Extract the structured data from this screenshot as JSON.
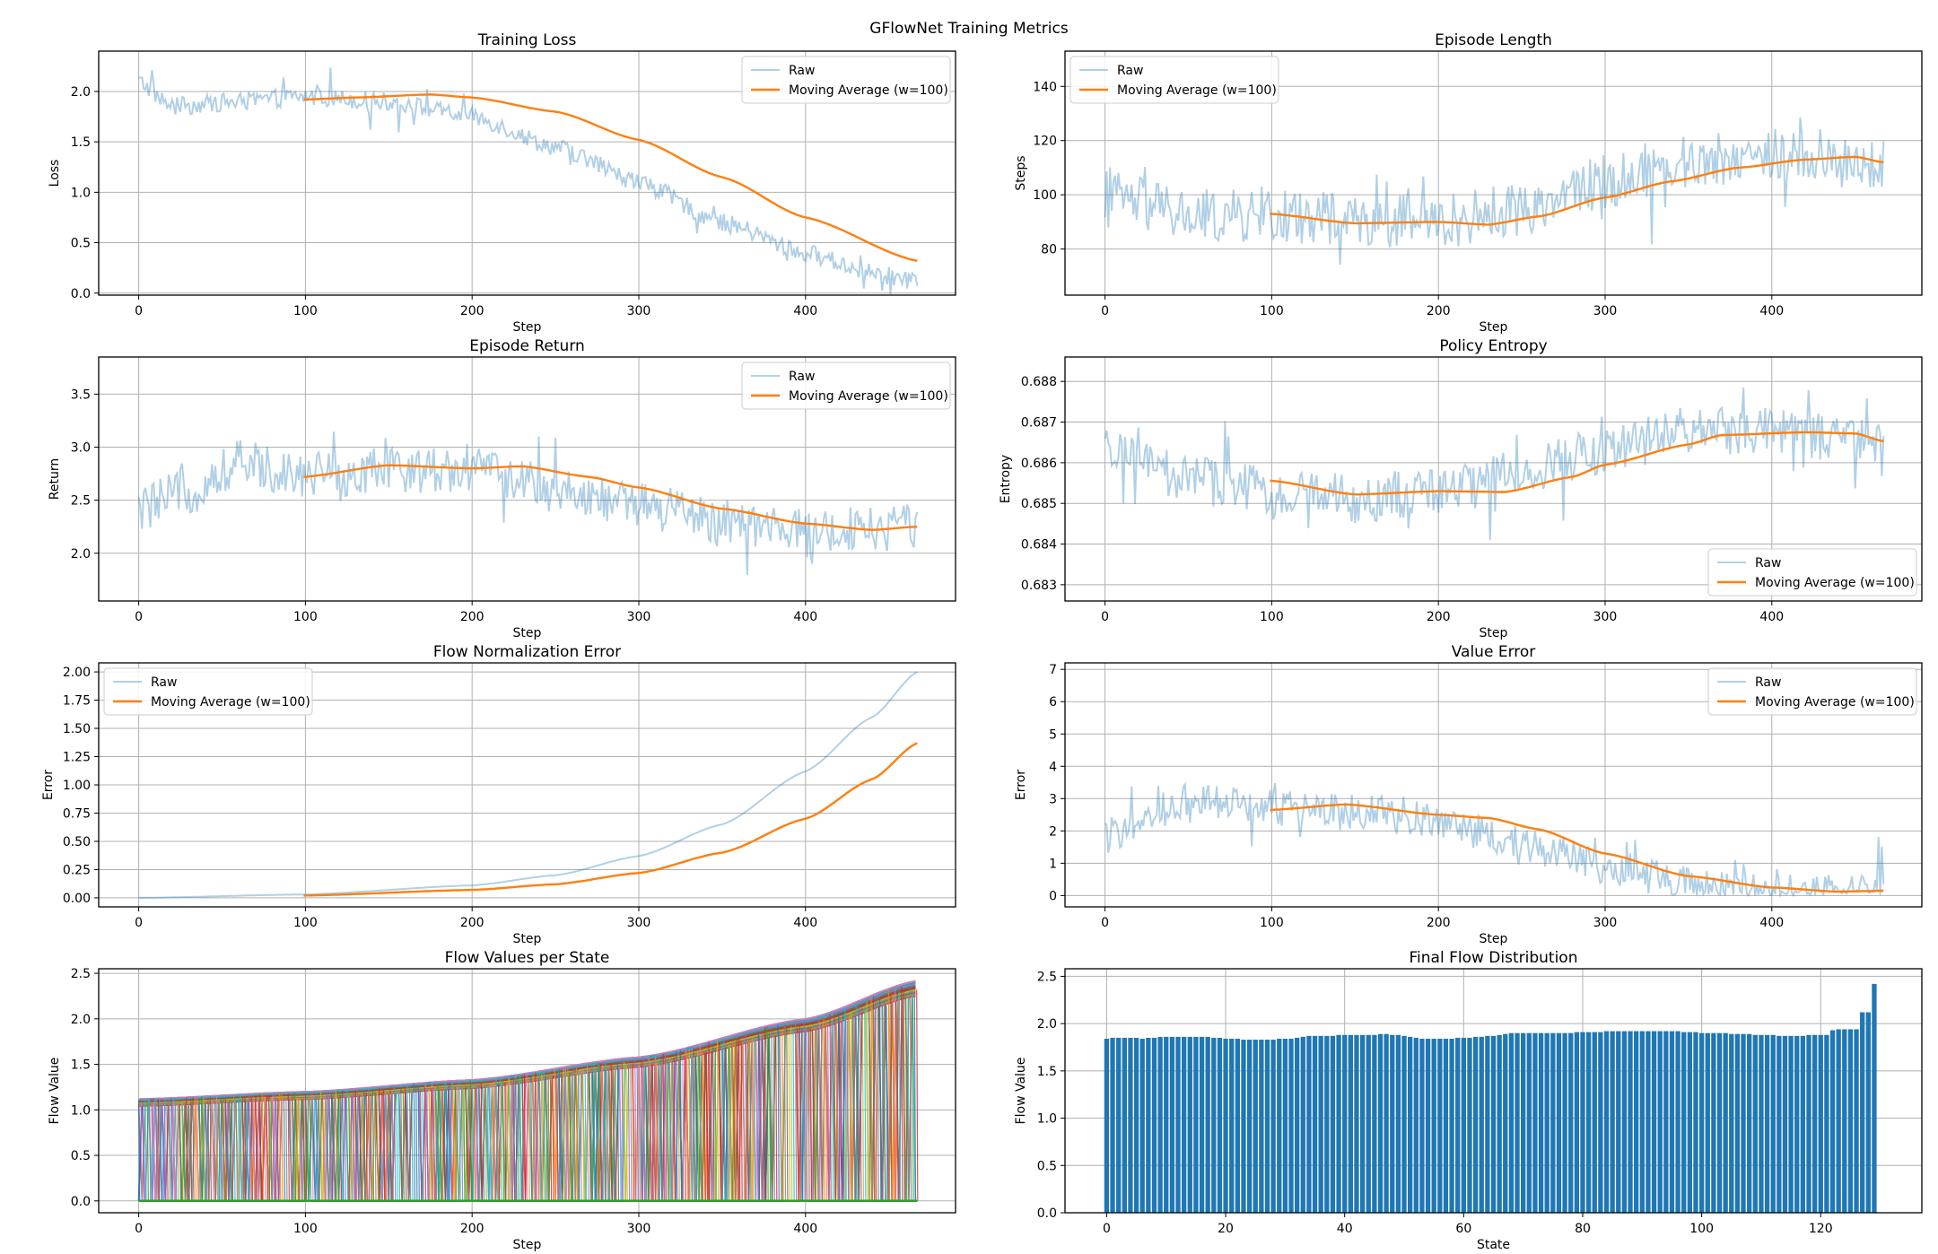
{
  "figure": {
    "suptitle": "GFlowNet Training Metrics"
  },
  "colors": {
    "raw": "#1f77b4",
    "ma": "#ff7f0e",
    "bar": "#1f77b4",
    "grid": "#b0b0b0"
  },
  "chart_data": [
    {
      "id": "loss",
      "type": "line",
      "title": "Training Loss",
      "xlabel": "Step",
      "ylabel": "Loss",
      "xlim": [
        -24,
        490
      ],
      "ylim": [
        -0.02,
        2.4
      ],
      "xticks": [
        0,
        100,
        200,
        300,
        400
      ],
      "yticks": [
        0.0,
        0.5,
        1.0,
        1.5,
        2.0
      ],
      "ytick_labels": [
        "0.0",
        "0.5",
        "1.0",
        "1.5",
        "2.0"
      ],
      "legend": {
        "loc": "top-right",
        "entries": [
          "Raw",
          "Moving Average (w=100)"
        ]
      },
      "raw": {
        "n": 468,
        "knots": [
          [
            0,
            2.1
          ],
          [
            20,
            1.85
          ],
          [
            60,
            1.9
          ],
          [
            100,
            1.95
          ],
          [
            150,
            1.9
          ],
          [
            200,
            1.75
          ],
          [
            250,
            1.45
          ],
          [
            300,
            1.1
          ],
          [
            350,
            0.7
          ],
          [
            400,
            0.4
          ],
          [
            440,
            0.2
          ],
          [
            467,
            0.12
          ]
        ],
        "noise": 0.09,
        "spikes": 0.25
      },
      "ma": {
        "x0": 99,
        "x1": 467,
        "knots": [
          [
            99,
            1.92
          ],
          [
            130,
            1.94
          ],
          [
            175,
            1.97
          ],
          [
            200,
            1.94
          ],
          [
            250,
            1.8
          ],
          [
            300,
            1.52
          ],
          [
            350,
            1.15
          ],
          [
            400,
            0.75
          ],
          [
            467,
            0.32
          ]
        ]
      }
    },
    {
      "id": "length",
      "type": "line",
      "title": "Episode Length",
      "xlabel": "Step",
      "ylabel": "Steps",
      "xlim": [
        -24,
        490
      ],
      "ylim": [
        63,
        153
      ],
      "xticks": [
        0,
        100,
        200,
        300,
        400
      ],
      "yticks": [
        80,
        100,
        120,
        140
      ],
      "ytick_labels": [
        "80",
        "100",
        "120",
        "140"
      ],
      "legend": {
        "loc": "top-left",
        "entries": [
          "Raw",
          "Moving Average (w=100)"
        ]
      },
      "raw": {
        "n": 468,
        "knots": [
          [
            0,
            100
          ],
          [
            50,
            92
          ],
          [
            100,
            92
          ],
          [
            200,
            90
          ],
          [
            250,
            95
          ],
          [
            300,
            105
          ],
          [
            350,
            112
          ],
          [
            400,
            115
          ],
          [
            467,
            110
          ]
        ],
        "noise": 10,
        "spikes": 20
      },
      "ma": {
        "x0": 99,
        "x1": 467,
        "knots": [
          [
            99,
            93
          ],
          [
            150,
            89.5
          ],
          [
            200,
            90
          ],
          [
            230,
            89
          ],
          [
            260,
            92
          ],
          [
            300,
            99
          ],
          [
            340,
            105
          ],
          [
            380,
            110
          ],
          [
            420,
            113
          ],
          [
            450,
            114
          ],
          [
            467,
            112
          ]
        ]
      }
    },
    {
      "id": "return",
      "type": "line",
      "title": "Episode Return",
      "xlabel": "Step",
      "ylabel": "Return",
      "xlim": [
        -24,
        490
      ],
      "ylim": [
        1.55,
        3.85
      ],
      "xticks": [
        0,
        100,
        200,
        300,
        400
      ],
      "yticks": [
        2.0,
        2.5,
        3.0,
        3.5
      ],
      "ytick_labels": [
        "2.0",
        "2.5",
        "3.0",
        "3.5"
      ],
      "legend": {
        "loc": "top-right",
        "entries": [
          "Raw",
          "Moving Average (w=100)"
        ]
      },
      "raw": {
        "n": 468,
        "knots": [
          [
            0,
            2.4
          ],
          [
            30,
            2.6
          ],
          [
            60,
            2.85
          ],
          [
            100,
            2.75
          ],
          [
            200,
            2.8
          ],
          [
            250,
            2.6
          ],
          [
            300,
            2.45
          ],
          [
            350,
            2.3
          ],
          [
            400,
            2.2
          ],
          [
            467,
            2.25
          ]
        ],
        "noise": 0.22,
        "spikes": 0.45
      },
      "ma": {
        "x0": 99,
        "x1": 467,
        "knots": [
          [
            99,
            2.72
          ],
          [
            150,
            2.83
          ],
          [
            200,
            2.8
          ],
          [
            230,
            2.82
          ],
          [
            270,
            2.72
          ],
          [
            300,
            2.62
          ],
          [
            350,
            2.42
          ],
          [
            400,
            2.28
          ],
          [
            440,
            2.22
          ],
          [
            467,
            2.25
          ]
        ]
      }
    },
    {
      "id": "entropy",
      "type": "line",
      "title": "Policy Entropy",
      "xlabel": "Step",
      "ylabel": "Entropy",
      "xlim": [
        -24,
        490
      ],
      "ylim": [
        0.6826,
        0.6886
      ],
      "xticks": [
        0,
        100,
        200,
        300,
        400
      ],
      "yticks": [
        0.683,
        0.684,
        0.685,
        0.686,
        0.687,
        0.688
      ],
      "ytick_labels": [
        "0.683",
        "0.684",
        "0.685",
        "0.686",
        "0.687",
        "0.688"
      ],
      "legend": {
        "loc": "bottom-right",
        "entries": [
          "Raw",
          "Moving Average (w=100)"
        ]
      },
      "raw": {
        "n": 468,
        "knots": [
          [
            0,
            0.6862
          ],
          [
            50,
            0.6856
          ],
          [
            100,
            0.6853
          ],
          [
            150,
            0.6851
          ],
          [
            200,
            0.6853
          ],
          [
            250,
            0.6858
          ],
          [
            300,
            0.6863
          ],
          [
            350,
            0.6868
          ],
          [
            400,
            0.6868
          ],
          [
            467,
            0.6864
          ]
        ],
        "noise": 0.0006,
        "spikes": 0.0013
      },
      "ma": {
        "x0": 99,
        "x1": 467,
        "knots": [
          [
            99,
            0.68556
          ],
          [
            150,
            0.68522
          ],
          [
            200,
            0.6853
          ],
          [
            240,
            0.68528
          ],
          [
            280,
            0.68565
          ],
          [
            300,
            0.68595
          ],
          [
            350,
            0.68645
          ],
          [
            370,
            0.68668
          ],
          [
            420,
            0.68675
          ],
          [
            450,
            0.68672
          ],
          [
            467,
            0.68653
          ]
        ]
      }
    },
    {
      "id": "flownorm",
      "type": "line",
      "title": "Flow Normalization Error",
      "xlabel": "Step",
      "ylabel": "Error",
      "xlim": [
        -24,
        490
      ],
      "ylim": [
        -0.08,
        2.08
      ],
      "xticks": [
        0,
        100,
        200,
        300,
        400
      ],
      "yticks": [
        0.0,
        0.25,
        0.5,
        0.75,
        1.0,
        1.25,
        1.5,
        1.75,
        2.0
      ],
      "ytick_labels": [
        "0.00",
        "0.25",
        "0.50",
        "0.75",
        "1.00",
        "1.25",
        "1.50",
        "1.75",
        "2.00"
      ],
      "legend": {
        "loc": "top-left",
        "entries": [
          "Raw",
          "Moving Average (w=100)"
        ]
      },
      "raw": {
        "n": 468,
        "knots": [
          [
            0,
            0.0
          ],
          [
            100,
            0.03
          ],
          [
            200,
            0.11
          ],
          [
            250,
            0.2
          ],
          [
            300,
            0.37
          ],
          [
            350,
            0.65
          ],
          [
            400,
            1.12
          ],
          [
            440,
            1.6
          ],
          [
            467,
            2.0
          ]
        ],
        "noise": 0,
        "spikes": 0
      },
      "ma": {
        "x0": 99,
        "x1": 467,
        "knots": [
          [
            99,
            0.02
          ],
          [
            200,
            0.07
          ],
          [
            250,
            0.12
          ],
          [
            300,
            0.22
          ],
          [
            350,
            0.4
          ],
          [
            400,
            0.7
          ],
          [
            440,
            1.05
          ],
          [
            467,
            1.37
          ]
        ]
      }
    },
    {
      "id": "valueerr",
      "type": "line",
      "title": "Value Error",
      "xlabel": "Step",
      "ylabel": "Error",
      "xlim": [
        -24,
        490
      ],
      "ylim": [
        -0.35,
        7.2
      ],
      "xticks": [
        0,
        100,
        200,
        300,
        400
      ],
      "yticks": [
        0,
        1,
        2,
        3,
        4,
        5,
        6,
        7
      ],
      "ytick_labels": [
        "0",
        "1",
        "2",
        "3",
        "4",
        "5",
        "6",
        "7"
      ],
      "legend": {
        "loc": "top-right",
        "entries": [
          "Raw",
          "Moving Average (w=100)"
        ]
      },
      "raw": {
        "n": 468,
        "knots": [
          [
            0,
            1.8
          ],
          [
            20,
            2.3
          ],
          [
            50,
            3.0
          ],
          [
            100,
            2.7
          ],
          [
            150,
            2.6
          ],
          [
            200,
            2.3
          ],
          [
            250,
            1.6
          ],
          [
            300,
            0.9
          ],
          [
            350,
            0.35
          ],
          [
            400,
            0.12
          ],
          [
            467,
            0.06
          ]
        ],
        "noise": 0.55,
        "spikes": 1.3
      },
      "ma": {
        "x0": 99,
        "x1": 467,
        "knots": [
          [
            99,
            2.65
          ],
          [
            145,
            2.82
          ],
          [
            200,
            2.5
          ],
          [
            230,
            2.4
          ],
          [
            260,
            2.05
          ],
          [
            300,
            1.3
          ],
          [
            350,
            0.6
          ],
          [
            400,
            0.25
          ],
          [
            440,
            0.12
          ],
          [
            467,
            0.15
          ]
        ]
      }
    },
    {
      "id": "flowvalues",
      "type": "line",
      "title": "Flow Values per State",
      "xlabel": "Step",
      "ylabel": "Flow Value",
      "xlim": [
        -24,
        490
      ],
      "ylim": [
        -0.13,
        2.55
      ],
      "xticks": [
        0,
        100,
        200,
        300,
        400
      ],
      "yticks": [
        0.0,
        0.5,
        1.0,
        1.5,
        2.0,
        2.5
      ],
      "ytick_labels": [
        "0.0",
        "0.5",
        "1.0",
        "1.5",
        "2.0",
        "2.5"
      ],
      "n_series": 130,
      "envelope": [
        [
          0,
          1.12
        ],
        [
          100,
          1.2
        ],
        [
          200,
          1.33
        ],
        [
          300,
          1.58
        ],
        [
          400,
          2.0
        ],
        [
          467,
          2.42
        ]
      ],
      "palette": [
        "#1f77b4",
        "#ff7f0e",
        "#2ca02c",
        "#d62728",
        "#9467bd",
        "#8c564b",
        "#e377c2",
        "#7f7f7f",
        "#bcbd22",
        "#17becf"
      ]
    },
    {
      "id": "finalflow",
      "type": "bar",
      "title": "Final Flow Distribution",
      "xlabel": "State",
      "ylabel": "Flow Value",
      "xlim": [
        -7,
        137
      ],
      "ylim": [
        0,
        2.58
      ],
      "xticks": [
        0,
        20,
        40,
        60,
        80,
        100,
        120
      ],
      "yticks": [
        0.0,
        0.5,
        1.0,
        1.5,
        2.0,
        2.5
      ],
      "ytick_labels": [
        "0.0",
        "0.5",
        "1.0",
        "1.5",
        "2.0",
        "2.5"
      ],
      "categories_count": 130,
      "values": [
        1.84,
        1.85,
        1.85,
        1.85,
        1.85,
        1.85,
        1.84,
        1.85,
        1.85,
        1.86,
        1.86,
        1.86,
        1.86,
        1.86,
        1.86,
        1.86,
        1.86,
        1.86,
        1.85,
        1.85,
        1.84,
        1.84,
        1.84,
        1.83,
        1.83,
        1.83,
        1.83,
        1.83,
        1.83,
        1.84,
        1.84,
        1.84,
        1.85,
        1.86,
        1.87,
        1.87,
        1.87,
        1.87,
        1.87,
        1.88,
        1.88,
        1.88,
        1.88,
        1.88,
        1.88,
        1.88,
        1.89,
        1.89,
        1.88,
        1.88,
        1.87,
        1.86,
        1.85,
        1.84,
        1.84,
        1.84,
        1.84,
        1.84,
        1.84,
        1.85,
        1.85,
        1.85,
        1.86,
        1.86,
        1.87,
        1.87,
        1.88,
        1.89,
        1.9,
        1.9,
        1.9,
        1.9,
        1.9,
        1.9,
        1.9,
        1.9,
        1.9,
        1.9,
        1.9,
        1.91,
        1.91,
        1.91,
        1.91,
        1.91,
        1.92,
        1.92,
        1.92,
        1.92,
        1.92,
        1.92,
        1.92,
        1.92,
        1.92,
        1.92,
        1.92,
        1.92,
        1.92,
        1.91,
        1.91,
        1.91,
        1.9,
        1.9,
        1.9,
        1.9,
        1.9,
        1.89,
        1.89,
        1.89,
        1.89,
        1.88,
        1.88,
        1.88,
        1.88,
        1.87,
        1.87,
        1.87,
        1.87,
        1.87,
        1.88,
        1.88,
        1.88,
        1.88,
        1.93,
        1.94,
        1.94,
        1.94,
        1.94,
        2.12,
        2.12,
        2.42
      ]
    }
  ]
}
